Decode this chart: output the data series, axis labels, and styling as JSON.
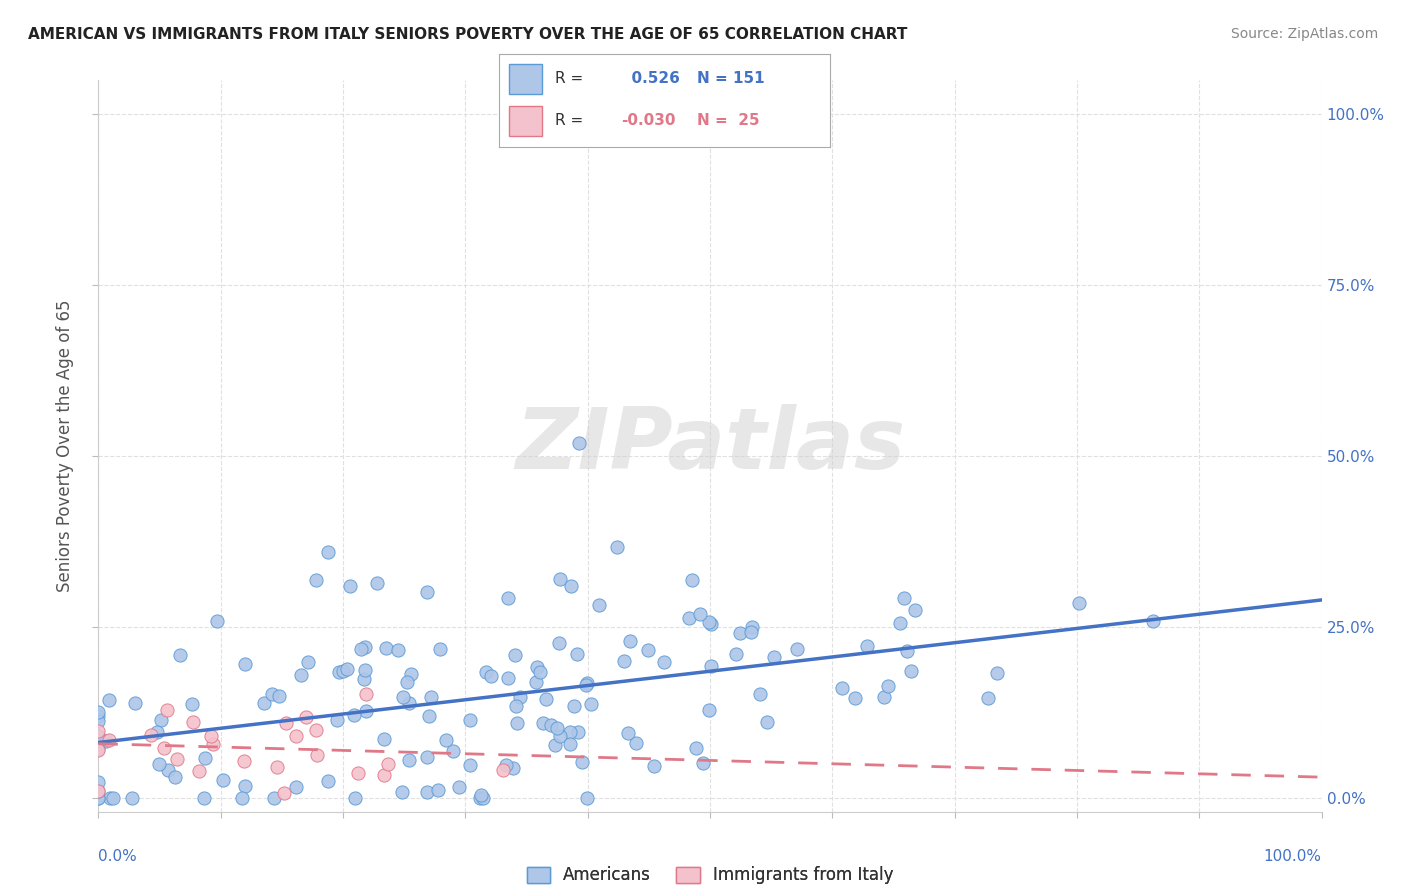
{
  "title": "AMERICAN VS IMMIGRANTS FROM ITALY SENIORS POVERTY OVER THE AGE OF 65 CORRELATION CHART",
  "source": "Source: ZipAtlas.com",
  "ylabel": "Seniors Poverty Over the Age of 65",
  "color_american_fill": "#aec6e8",
  "color_american_edge": "#5b9bd5",
  "color_american_line": "#4472c4",
  "color_italy_fill": "#f4c2cc",
  "color_italy_edge": "#e07888",
  "color_italy_line": "#e07888",
  "american_R": 0.526,
  "american_N": 151,
  "italy_R": -0.03,
  "italy_N": 25,
  "watermark_color": "#d0d0d0",
  "title_color": "#222222",
  "source_color": "#888888",
  "grid_color": "#dddddd",
  "axis_label_color": "#4472c4",
  "text_color": "#333333",
  "ytick_values": [
    0,
    0.25,
    0.5,
    0.75,
    1.0
  ]
}
